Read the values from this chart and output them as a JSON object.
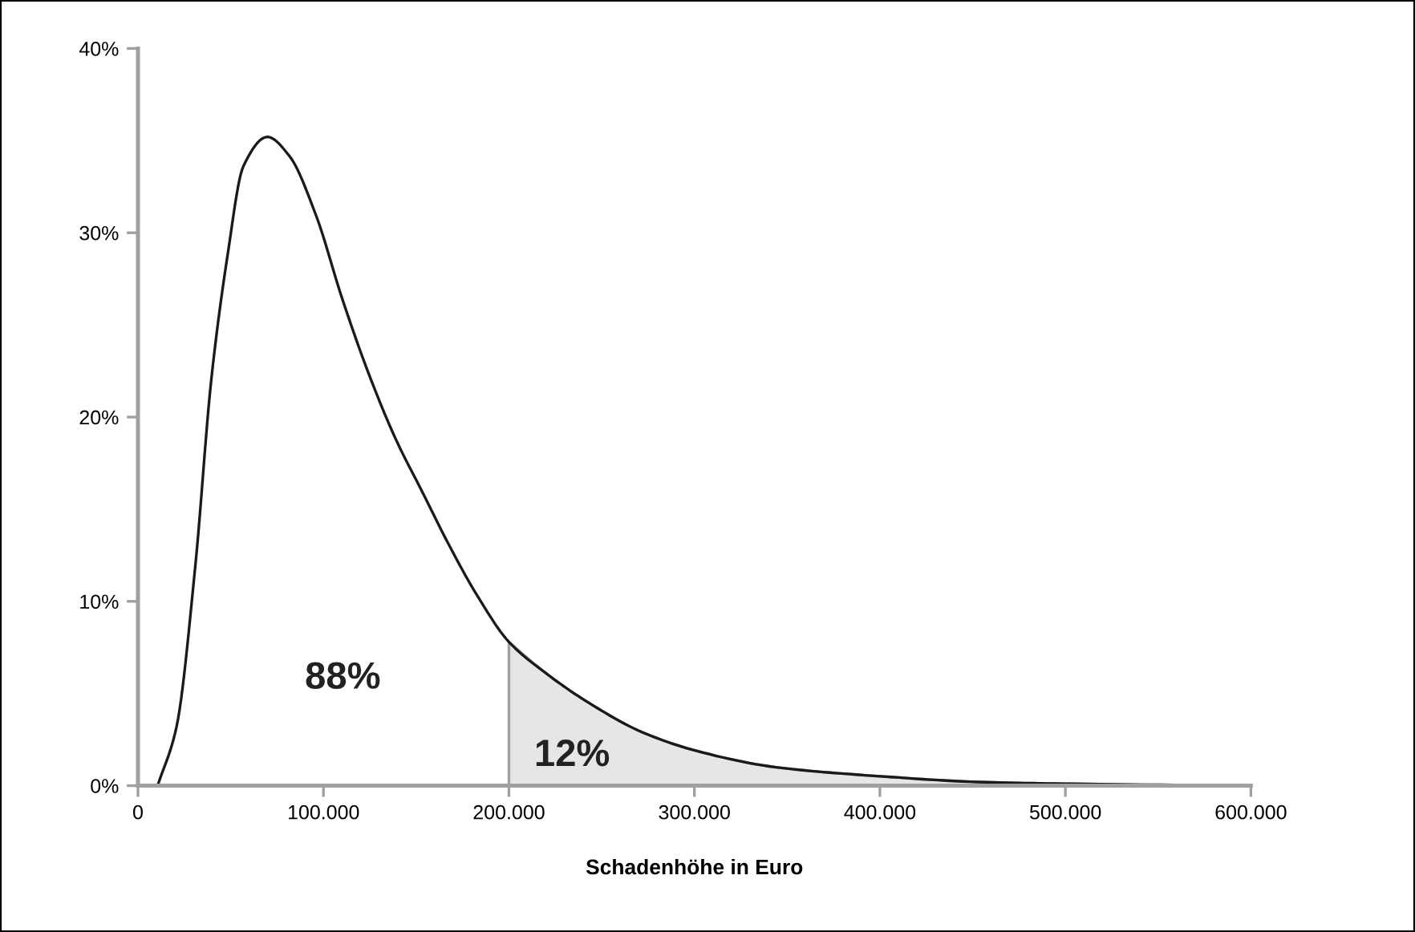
{
  "chart_data": {
    "type": "line",
    "xlabel": "Schadenhöhe in Euro",
    "series": [
      {
        "type": "area",
        "color": "#e6e6e6",
        "x": [
          200000,
          220000,
          243000,
          271900,
          300700,
          344000,
          401700,
          453000,
          502600,
          600000
        ],
        "values": [
          7.8,
          6.1,
          4.5,
          2.9,
          1.9,
          1.0,
          0.5,
          0.2,
          0.1,
          0
        ]
      },
      {
        "color": "#1a1a1a",
        "x": [
          10600,
          20800,
          30900,
          39500,
          48200,
          56800,
          69800,
          81400,
          95800,
          110200,
          124600,
          139000,
          153500,
          168000,
          182400,
          200000,
          220000,
          243000,
          271900,
          300700,
          344000,
          401700,
          453000,
          502600,
          600000
        ],
        "values": [
          0,
          3.2,
          11.9,
          22.0,
          28.7,
          33.6,
          35.2,
          34.2,
          31.0,
          26.4,
          22.3,
          18.8,
          15.9,
          13.0,
          10.4,
          7.8,
          6.1,
          4.5,
          2.9,
          1.9,
          1.0,
          0.5,
          0.2,
          0.1,
          0
        ]
      }
    ],
    "xlim": [
      0,
      600000
    ],
    "xticks": [
      0,
      {
        "value": 100000,
        "label": "100.000"
      },
      {
        "value": 200000,
        "label": "200.000"
      },
      {
        "value": 300000,
        "label": "300.000"
      },
      {
        "value": 400000,
        "label": "400.000"
      },
      {
        "value": 500000,
        "label": "500.000"
      },
      {
        "value": 600000,
        "label": "600.000"
      }
    ],
    "ylim": [
      0,
      40
    ],
    "yticks": [
      {
        "value": 0,
        "label": "0%"
      },
      {
        "value": 10,
        "label": "10%"
      },
      {
        "value": 20,
        "label": "20%"
      },
      {
        "value": 30,
        "label": "30%"
      },
      {
        "value": 40,
        "label": "40%"
      }
    ],
    "annotations": [
      "88%",
      "12%"
    ],
    "grid": false,
    "legend": false
  }
}
